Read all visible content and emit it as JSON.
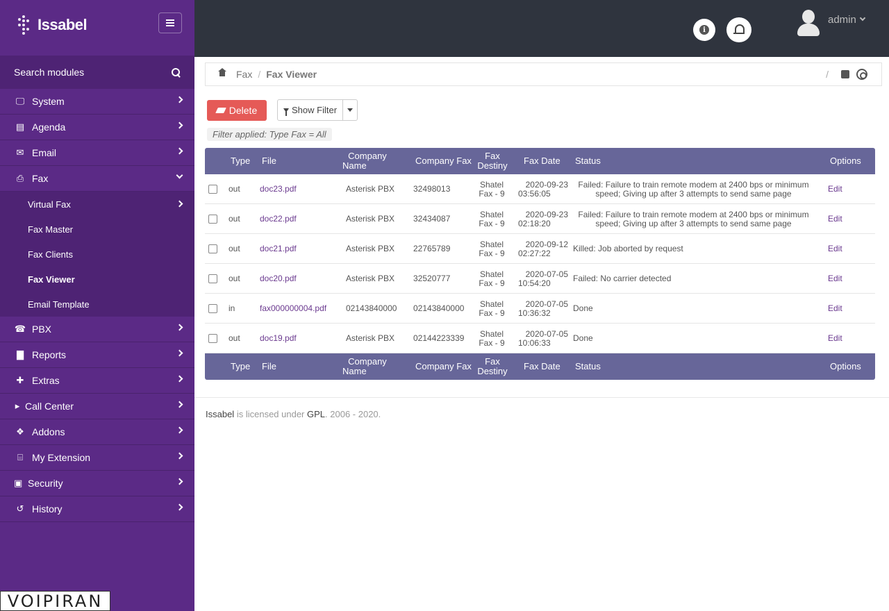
{
  "app": {
    "name": "Issabel"
  },
  "sidebar": {
    "search_label": "Search modules",
    "items": [
      {
        "label": "System",
        "icon": "laptop-icon"
      },
      {
        "label": "Agenda",
        "icon": "book-icon"
      },
      {
        "label": "Email",
        "icon": "envelope-icon"
      },
      {
        "label": "Fax",
        "icon": "print-icon",
        "expanded": true
      },
      {
        "label": "PBX",
        "icon": "phone-icon"
      },
      {
        "label": "Reports",
        "icon": "bar-chart-icon"
      },
      {
        "label": "Extras",
        "icon": "plus-icon"
      },
      {
        "label": "Call Center",
        "icon": "caret-right-icon"
      },
      {
        "label": "Addons",
        "icon": "cubes-icon"
      },
      {
        "label": "My Extension",
        "icon": "fax-machine-icon"
      },
      {
        "label": "Security",
        "icon": "lock-icon"
      },
      {
        "label": "History",
        "icon": "history-icon"
      }
    ],
    "fax_subitems": [
      {
        "label": "Virtual Fax"
      },
      {
        "label": "Fax Master"
      },
      {
        "label": "Fax Clients"
      },
      {
        "label": "Fax Viewer",
        "active": true
      },
      {
        "label": "Email Template"
      }
    ],
    "watermark": "VOIPIRAN"
  },
  "topbar": {
    "username": "admin"
  },
  "breadcrumb": {
    "section": "Fax",
    "current": "Fax Viewer",
    "separator": "/"
  },
  "toolbar": {
    "delete_label": "Delete",
    "filter_label": "Show Filter",
    "filter_applied": "Filter applied: Type Fax = All"
  },
  "table": {
    "headers": {
      "type": "Type",
      "file": "File",
      "company_name_1": "Company",
      "company_name_2": "Name",
      "company_fax": "Company Fax",
      "fax_destiny_1": "Fax",
      "fax_destiny_2": "Destiny",
      "fax_date": "Fax Date",
      "status": "Status",
      "options": "Options"
    },
    "rows": [
      {
        "type": "out",
        "file": "doc23.pdf",
        "company_name": "Asterisk PBX",
        "company_fax": "32498013",
        "destiny_1": "Shatel",
        "destiny_2": "Fax - 9",
        "date": "2020-09-23",
        "time": "03:56:05",
        "status_1": "Failed: Failure to train remote modem at 2400 bps or minimum",
        "status_2": "speed; Giving up after 3 attempts to send same page",
        "option": "Edit"
      },
      {
        "type": "out",
        "file": "doc22.pdf",
        "company_name": "Asterisk PBX",
        "company_fax": "32434087",
        "destiny_1": "Shatel",
        "destiny_2": "Fax - 9",
        "date": "2020-09-23",
        "time": "02:18:20",
        "status_1": "Failed: Failure to train remote modem at 2400 bps or minimum",
        "status_2": "speed; Giving up after 3 attempts to send same page",
        "option": "Edit"
      },
      {
        "type": "out",
        "file": "doc21.pdf",
        "company_name": "Asterisk PBX",
        "company_fax": "22765789",
        "destiny_1": "Shatel",
        "destiny_2": "Fax - 9",
        "date": "2020-09-12",
        "time": "02:27:22",
        "status_1": "Killed: Job aborted by request",
        "status_2": "",
        "option": "Edit"
      },
      {
        "type": "out",
        "file": "doc20.pdf",
        "company_name": "Asterisk PBX",
        "company_fax": "32520777",
        "destiny_1": "Shatel",
        "destiny_2": "Fax - 9",
        "date": "2020-07-05",
        "time": "10:54:20",
        "status_1": "Failed: No carrier detected",
        "status_2": "",
        "option": "Edit"
      },
      {
        "type": "in",
        "file": "fax000000004.pdf",
        "company_name": "02143840000",
        "company_fax": "02143840000",
        "destiny_1": "Shatel",
        "destiny_2": "Fax - 9",
        "date": "2020-07-05",
        "time": "10:36:32",
        "status_1": "Done",
        "status_2": "",
        "option": "Edit"
      },
      {
        "type": "out",
        "file": "doc19.pdf",
        "company_name": "Asterisk PBX",
        "company_fax": "02144223339",
        "destiny_1": "Shatel",
        "destiny_2": "Fax - 9",
        "date": "2020-07-05",
        "time": "10:06:33",
        "status_1": "Done",
        "status_2": "",
        "option": "Edit"
      }
    ]
  },
  "footer": {
    "brand": "Issabel",
    "text1": "is licensed under",
    "license": "GPL",
    "text2": ". 2006 - 2020."
  },
  "colors": {
    "sidebar": "#5b2a86",
    "topbar": "#2f343e",
    "table_header": "#676699",
    "delete": "#e55a57"
  }
}
